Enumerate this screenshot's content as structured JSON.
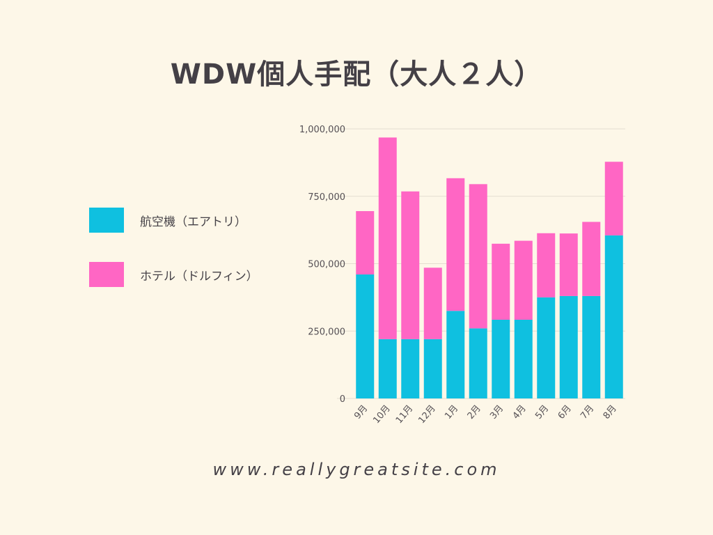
{
  "title": "WDW個人手配（大人２人）",
  "footer": "www.reallygreatsite.com",
  "legend": [
    {
      "label": "航空機（エアトリ）",
      "color": "#0fc0e0"
    },
    {
      "label": "ホテル（ドルフィン）",
      "color": "#ff66c4"
    }
  ],
  "chart_data": {
    "type": "bar",
    "stacked": true,
    "categories": [
      "9月",
      "10月",
      "11月",
      "12月",
      "1月",
      "2月",
      "3月",
      "4月",
      "5月",
      "6月",
      "7月",
      "8月"
    ],
    "series": [
      {
        "name": "航空機（エアトリ）",
        "color": "#0fc0e0",
        "values": [
          460000,
          220000,
          220000,
          220000,
          325000,
          260000,
          292000,
          292000,
          375000,
          380000,
          380000,
          605000
        ]
      },
      {
        "name": "ホテル（ドルフィン）",
        "color": "#ff66c4",
        "values": [
          235000,
          748000,
          548000,
          265000,
          492000,
          535000,
          282000,
          293000,
          238000,
          232000,
          275000,
          273000
        ]
      }
    ],
    "ylim": [
      0,
      1000000
    ],
    "yticks": [
      0,
      250000,
      500000,
      750000,
      1000000
    ],
    "ytick_labels": [
      "0",
      "250,000",
      "500,000",
      "750,000",
      "1,000,000"
    ],
    "grid": true,
    "legend_position": "left"
  }
}
